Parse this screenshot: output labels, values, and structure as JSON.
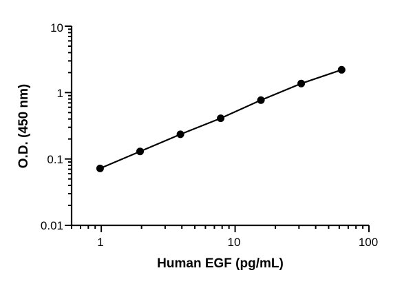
{
  "chart_data": {
    "type": "scatter",
    "title": "",
    "xlabel": "Human EGF (pg/mL)",
    "ylabel": "O.D. (450 nm)",
    "xscale": "log",
    "yscale": "log",
    "xlim": [
      0.6,
      100
    ],
    "ylim": [
      0.01,
      10
    ],
    "grid": false,
    "legend": "none",
    "x_tick_labels": [
      "1",
      "10",
      "100"
    ],
    "y_tick_labels": [
      "0.01",
      "0.1",
      "1",
      "10"
    ],
    "x_ticks": [
      1,
      10,
      100
    ],
    "y_ticks": [
      0.01,
      0.1,
      1,
      10
    ],
    "series": [
      {
        "x": [
          0.98,
          1.95,
          3.9,
          7.8,
          15.6,
          31.2,
          62.5
        ],
        "y": [
          0.072,
          0.13,
          0.235,
          0.41,
          0.77,
          1.37,
          2.2
        ],
        "color": "#000000",
        "fit_line": true
      }
    ]
  }
}
